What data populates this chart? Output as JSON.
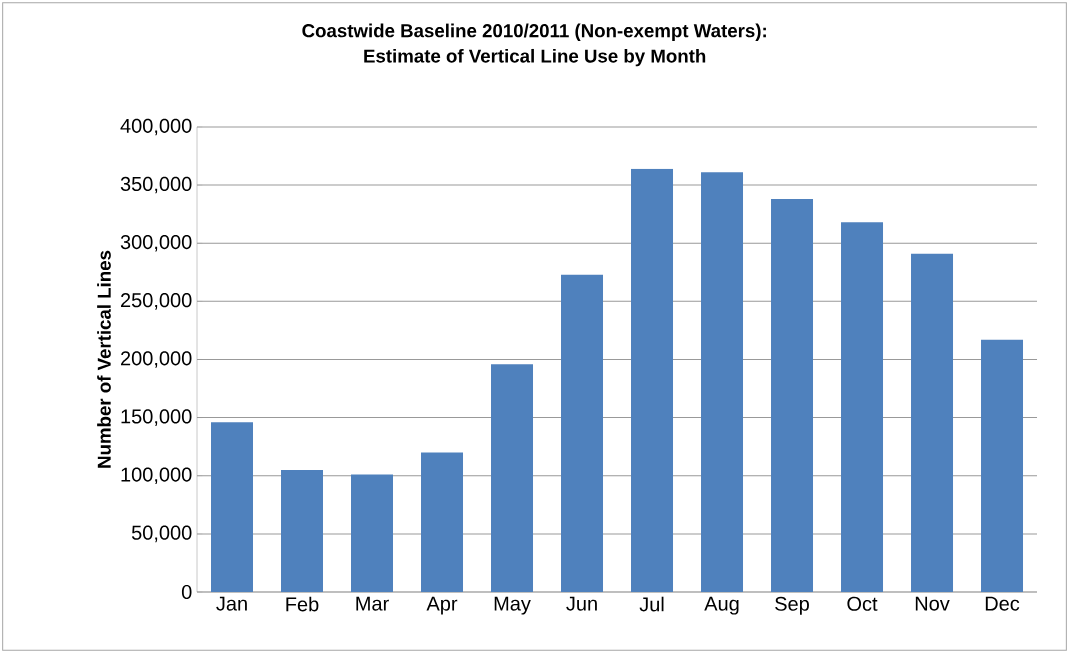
{
  "chart_data": {
    "type": "bar",
    "title": "Coastwide Baseline 2010/2011 (Non-exempt Waters):\nEstimate of Vertical Line Use by Month",
    "ylabel": "Number of Vertical Lines",
    "categories": [
      "Jan",
      "Feb",
      "Mar",
      "Apr",
      "May",
      "Jun",
      "Jul",
      "Aug",
      "Sep",
      "Oct",
      "Nov",
      "Dec"
    ],
    "values": [
      146000,
      105000,
      101000,
      120000,
      196000,
      273000,
      364000,
      361000,
      338000,
      318000,
      291000,
      217000
    ],
    "color": "#4f81bd",
    "ylim": [
      0,
      400000
    ],
    "yticks": [
      {
        "value": 0,
        "label": "0"
      },
      {
        "value": 50000,
        "label": "50,000"
      },
      {
        "value": 100000,
        "label": "100,000"
      },
      {
        "value": 150000,
        "label": "150,000"
      },
      {
        "value": 200000,
        "label": "200,000"
      },
      {
        "value": 250000,
        "label": "250,000"
      },
      {
        "value": 300000,
        "label": "300,000"
      },
      {
        "value": 350000,
        "label": "350,000"
      },
      {
        "value": 400000,
        "label": "400,000"
      }
    ],
    "grid": "y"
  }
}
